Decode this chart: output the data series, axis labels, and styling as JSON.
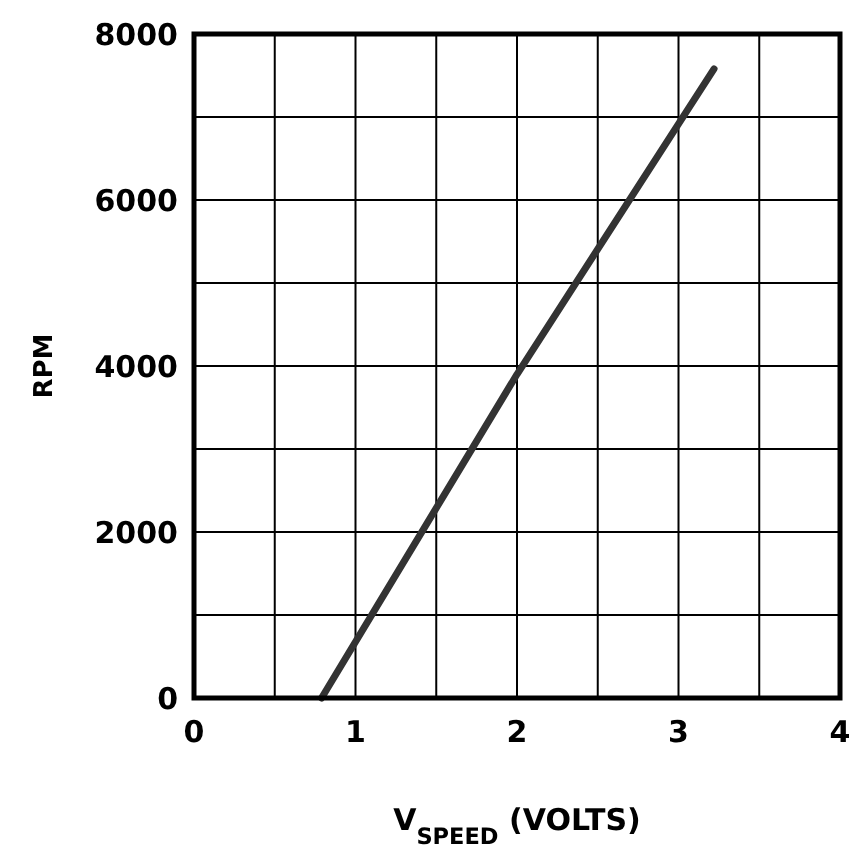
{
  "chart_data": {
    "type": "line",
    "xlabel": "V$_{SPEED}$ (VOLTS)",
    "ylabel": "RPM",
    "x": [
      0.79,
      2.0,
      3.22
    ],
    "series": [
      {
        "color": "#333333",
        "values": [
          0,
          3900,
          7580
        ]
      }
    ],
    "xlim": [
      0,
      4
    ],
    "ylim": [
      0,
      8000
    ],
    "xticks": [
      0,
      {
        "value": 0.5,
        "label": null
      },
      1,
      {
        "value": 1.5,
        "label": null
      },
      2,
      {
        "value": 2.5,
        "label": null
      },
      3,
      {
        "value": 3.5,
        "label": null
      },
      4
    ],
    "yticks": [
      0,
      {
        "value": 1000,
        "label": null
      },
      2000,
      {
        "value": 3000,
        "label": null
      },
      4000,
      {
        "value": 5000,
        "label": null
      },
      6000,
      {
        "value": 7000,
        "label": null
      },
      8000
    ],
    "grid": true,
    "marker": "none",
    "line_style": "solid"
  }
}
